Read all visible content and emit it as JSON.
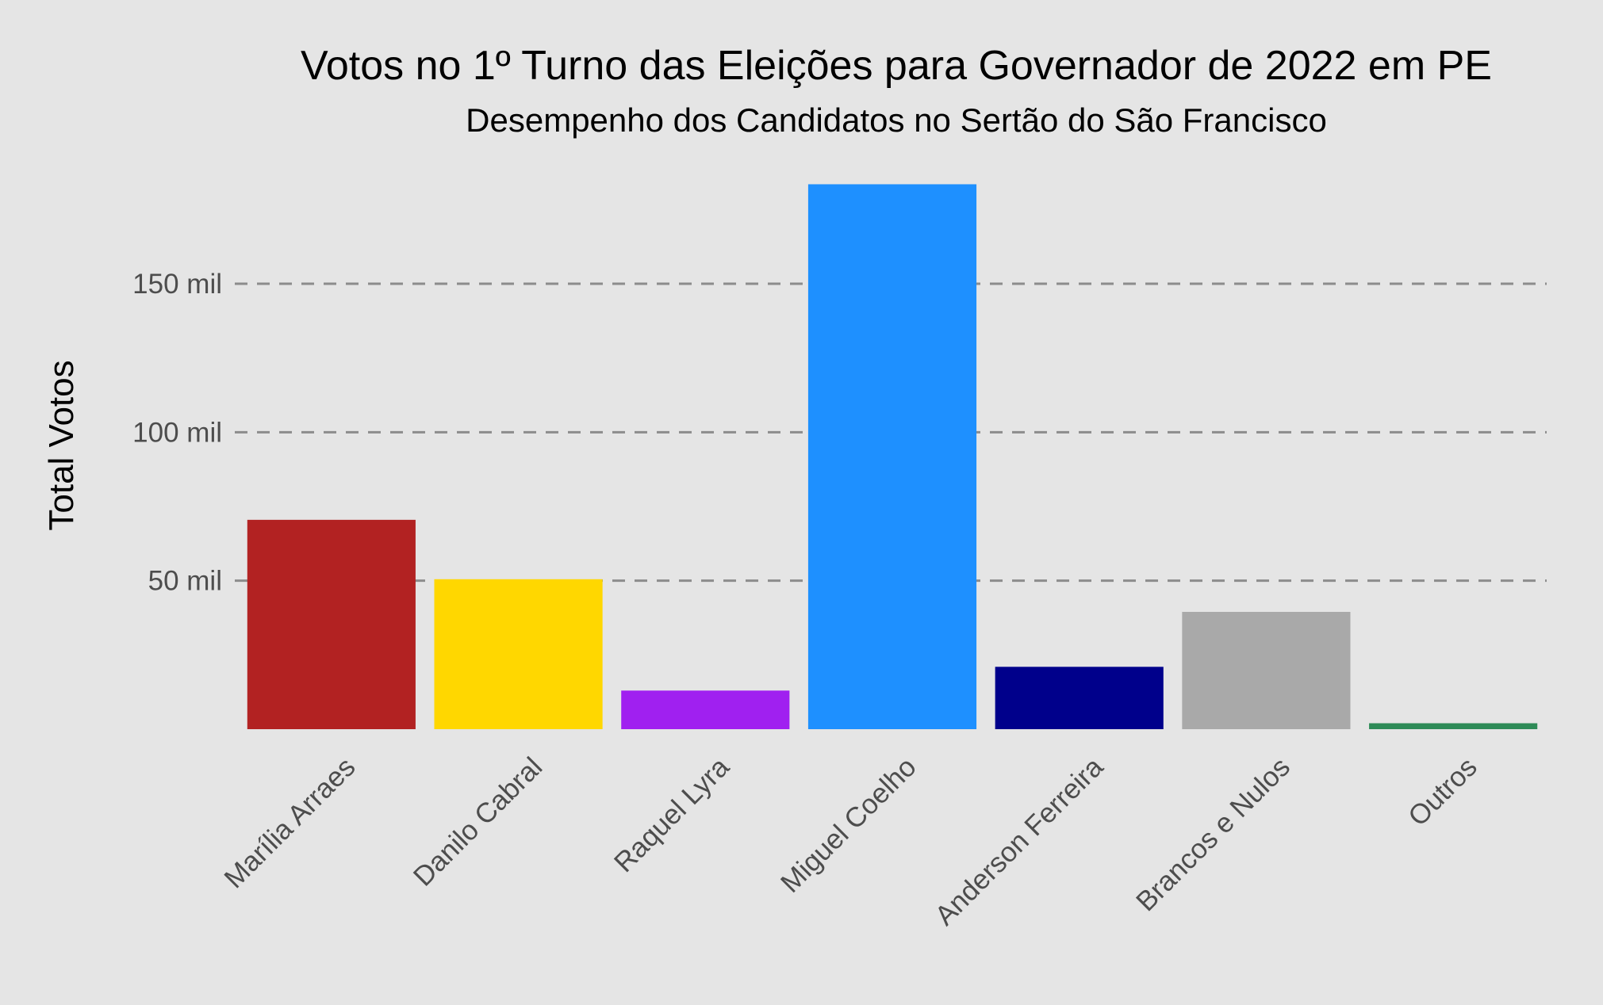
{
  "chart_data": {
    "type": "bar",
    "title": "Votos no 1º Turno das Eleições para Governador de 2022 em PE",
    "subtitle": "Desempenho dos Candidatos no Sertão do São Francisco",
    "ylabel": "Total Votos",
    "xlabel": "",
    "ylim": [
      0,
      190000
    ],
    "yticks": [
      {
        "value": 50000,
        "label": "50 mil"
      },
      {
        "value": 100000,
        "label": "100 mil"
      },
      {
        "value": 150000,
        "label": "150 mil"
      }
    ],
    "grid": "horizontal dashed",
    "legend": "none",
    "categories": [
      "Marília Arraes",
      "Danilo Cabral",
      "Raquel Lyra",
      "Miguel Coelho",
      "Anderson Ferreira",
      "Brancos e Nulos",
      "Outros"
    ],
    "values": [
      70500,
      50500,
      13000,
      183500,
      21000,
      39500,
      2000
    ],
    "colors": [
      "#b22222",
      "#ffd700",
      "#a020f0",
      "#1e90ff",
      "#00008b",
      "#a9a9a9",
      "#2e8b57"
    ]
  }
}
